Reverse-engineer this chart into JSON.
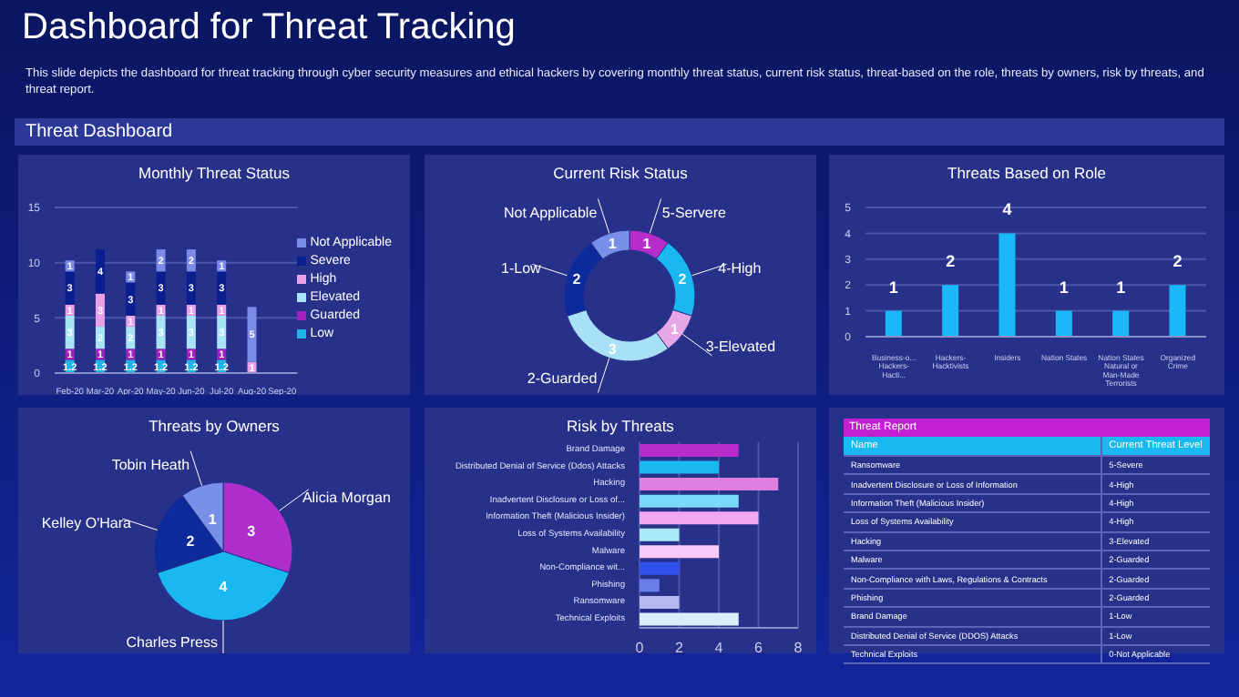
{
  "chart_data": [
    {
      "type": "other",
      "title": "Dashboard for Threat Tracking",
      "subtitle": "This slide depicts the dashboard for threat tracking through cyber security measures and ethical hackers by covering monthly threat status, current risk status, threat-based on the role, threats by owners, risk by threats, and threat report.",
      "annotations": [
        "Threat Dashboard"
      ]
    },
    {
      "type": "bar",
      "title": "Monthly Threat Status",
      "stacked": true,
      "categories": [
        "Feb-20",
        "Mar-20",
        "Apr-20",
        "May-20",
        "Jun-20",
        "Jul-20",
        "Aug-20",
        "Sep-20"
      ],
      "series": [
        {
          "name": "Low",
          "color": "#1fb4e8",
          "values": [
            1.2,
            1.2,
            1.2,
            1.2,
            1.2,
            1.2,
            null,
            null
          ]
        },
        {
          "name": "Guarded",
          "color": "#a020c0",
          "values": [
            1,
            1,
            1,
            1,
            1,
            1,
            null,
            null
          ]
        },
        {
          "name": "Elevated",
          "color": "#a8e4f8",
          "values": [
            3,
            2,
            2,
            3,
            3,
            3,
            null,
            null
          ]
        },
        {
          "name": "High",
          "color": "#e8a0e8",
          "values": [
            1,
            3,
            1,
            1,
            1,
            1,
            1,
            null
          ]
        },
        {
          "name": "Severe",
          "color": "#0a1f8f",
          "values": [
            3,
            4,
            3,
            3,
            3,
            3,
            null,
            null
          ]
        },
        {
          "name": "Not Applicable",
          "color": "#7a8ce8",
          "values": [
            1,
            null,
            1,
            2,
            2,
            1,
            5,
            null
          ]
        }
      ],
      "ylim": [
        0,
        15
      ],
      "yticks": [
        0,
        5,
        10,
        15
      ],
      "grid": "y",
      "legend": "right",
      "data_labels": true
    },
    {
      "type": "donut",
      "title": "Current Risk Status",
      "categories": [
        "5-Servere",
        "4-High",
        "3-Elevated",
        "2-Guarded",
        "1-Low",
        "Not Applicable"
      ],
      "values": [
        1,
        2,
        1,
        3,
        2,
        1
      ],
      "colors": [
        "#b82ccc",
        "#1ab8f0",
        "#e8a8e8",
        "#a8e0f8",
        "#0c2a9a",
        "#7a90e8"
      ],
      "data_labels": true
    },
    {
      "type": "bar",
      "title": "Threats Based on Role",
      "categories": [
        "Business-o... Hackers-Hacti...",
        "Hackers-Hacktivists",
        "Insiders",
        "Nation States",
        "Nation States Natural or Man-Made Terrorists",
        "Organized Crime"
      ],
      "values": [
        1,
        2,
        4,
        1,
        1,
        2
      ],
      "color": "#1ab8f8",
      "ylim": [
        0,
        5
      ],
      "yticks": [
        0,
        1,
        2,
        3,
        4,
        5
      ],
      "grid": "y",
      "data_labels": true
    },
    {
      "type": "pie",
      "title": "Threats by Owners",
      "categories": [
        "Alicia Morgan",
        "Charles Press",
        "Kelley O'Hara",
        "Tobin Heath"
      ],
      "values": [
        3,
        4,
        2,
        1
      ],
      "colors": [
        "#b02ccc",
        "#1ab8f0",
        "#0c2a9a",
        "#7a90e8"
      ],
      "data_labels": true
    },
    {
      "type": "bar",
      "title": "Risk by Threats",
      "orientation": "horizontal",
      "categories": [
        "Brand Damage",
        "Distributed Denial of Service (Ddos) Attacks",
        "Hacking",
        "Inadvertent Disclosure or Loss of...",
        "Information Theft (Malicious Insider)",
        "Loss of Systems Availability",
        "Malware",
        "Non-Compliance wit...",
        "Phishing",
        "Ransomware",
        "Technical Exploits"
      ],
      "values": [
        5,
        4,
        7,
        5,
        6,
        2,
        4,
        2,
        1,
        2,
        5
      ],
      "colors": [
        "#b82ccc",
        "#1ab8f0",
        "#e07ee0",
        "#7ad8f8",
        "#f0a8f0",
        "#a8e8f8",
        "#f8c8f8",
        "#3050f0",
        "#6a80e8",
        "#b8b8f0",
        "#d8f0fc"
      ],
      "xlim": [
        0,
        8
      ],
      "xticks": [
        0,
        2,
        4,
        6,
        8
      ],
      "grid": "x"
    },
    {
      "type": "other",
      "title": "Threat Report",
      "annotations": [
        "Name",
        "Current Threat Level",
        "Ransomware",
        "5-Severe",
        "Inadvertent Disclosure or Loss of Information",
        "4-High",
        "Information Theft (Malicious Insider)",
        "4-High",
        "Loss of Systems Availability",
        "4-High",
        "Hacking",
        "3-Elevated",
        "Malware",
        "2-Guarded",
        "Non-Compliance with Laws, Regulations & Contracts",
        "2-Guarded",
        "Phishing",
        "2-Guarded",
        "Brand Damage",
        "1-Low",
        "Distributed Denial of Service (DDOS) Attacks",
        "1-Low",
        "Technical Exploits",
        "0-Not Applicable"
      ]
    }
  ]
}
